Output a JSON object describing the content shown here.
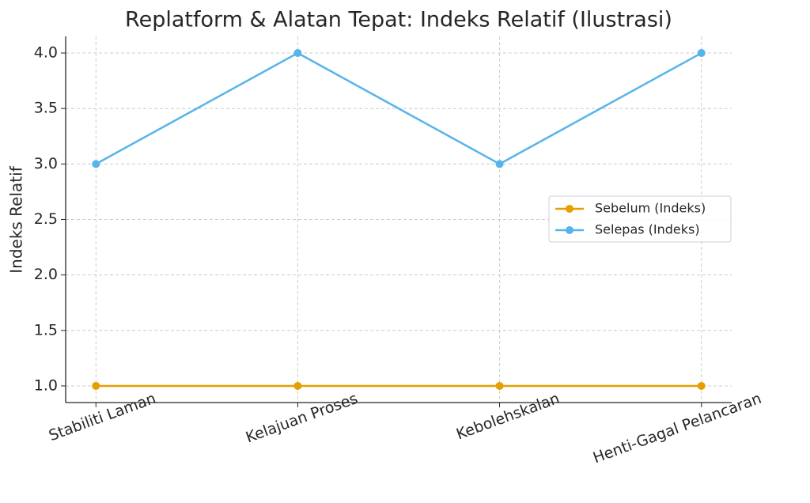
{
  "chart_data": {
    "type": "line",
    "title": "Replatform & Alatan Tepat: Indeks Relatif (Ilustrasi)",
    "y_label": "Indeks Relatif",
    "categories": [
      "Stabiliti Laman",
      "Kelajuan Proses",
      "Kebolehskalan",
      "Henti-Gagal Pelancaran"
    ],
    "series": [
      {
        "name": "Sebelum (Indeks)",
        "color": "#E69F00",
        "values": [
          1,
          1,
          1,
          1
        ]
      },
      {
        "name": "Selepas (Indeks)",
        "color": "#56B4E9",
        "values": [
          3,
          4,
          3,
          4
        ]
      }
    ],
    "ylim": [
      0.85,
      4.15
    ],
    "yticks": [
      {
        "value": 1,
        "label": "1.0"
      },
      {
        "value": 1.5,
        "label": "1.5"
      },
      {
        "value": 2,
        "label": "2.0"
      },
      {
        "value": 2.5,
        "label": "2.5"
      },
      {
        "value": 3,
        "label": "3.0"
      },
      {
        "value": 3.5,
        "label": "3.5"
      },
      {
        "value": 4,
        "label": "4.0"
      }
    ],
    "grid": true,
    "legend": "center right"
  }
}
